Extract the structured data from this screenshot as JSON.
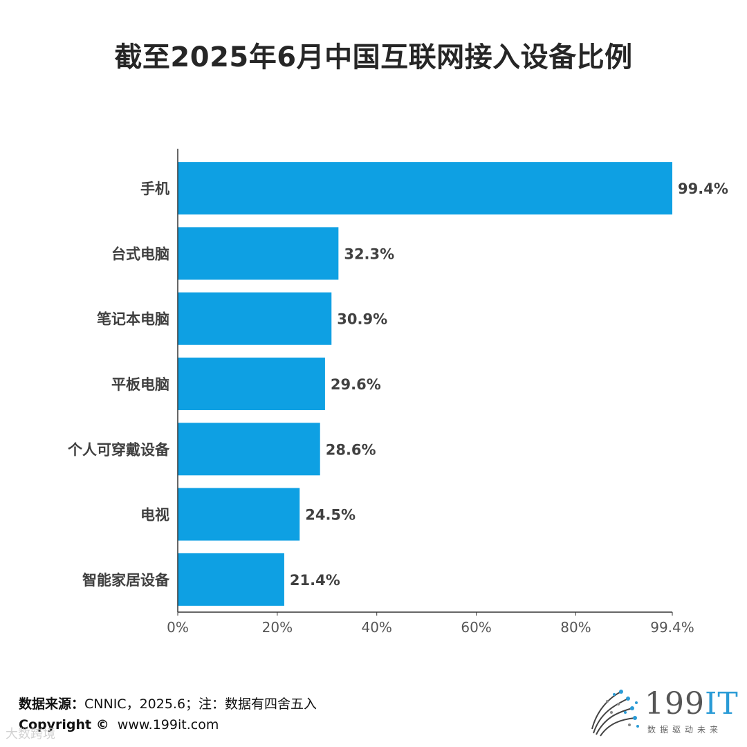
{
  "title": "截至2025年6月中国互联网接入设备比例",
  "colors": {
    "bar": "#0ea0e3",
    "axis": "#333333",
    "label": "#404040",
    "tick": "#555555"
  },
  "chart_data": {
    "type": "bar",
    "orientation": "horizontal",
    "title": "截至2025年6月中国互联网接入设备比例",
    "categories": [
      "手机",
      "台式电脑",
      "笔记本电脑",
      "平板电脑",
      "个人可穿戴设备",
      "电视",
      "智能家居设备"
    ],
    "values": [
      99.4,
      32.3,
      30.9,
      29.6,
      28.6,
      24.5,
      21.4
    ],
    "value_labels": [
      "99.4%",
      "32.3%",
      "30.9%",
      "29.6%",
      "28.6%",
      "24.5%",
      "21.4%"
    ],
    "xlim": [
      0,
      99.4
    ],
    "xticks": [
      0,
      20,
      40,
      60,
      80,
      99.4
    ],
    "xtick_labels": [
      "0%",
      "20%",
      "40%",
      "60%",
      "80%",
      "99.4%"
    ],
    "xlabel": "",
    "ylabel": "",
    "grid": false,
    "legend": "none"
  },
  "footer": {
    "source_label": "数据来源：",
    "source_text": "CNNIC，2025.6；注：数据有四舍五入",
    "copyright_label": "Copyright ©",
    "copyright_url": "www.199it.com",
    "watermark": "大数跨境"
  },
  "logo": {
    "text_main": "199",
    "text_it": "IT",
    "tagline": "数据驱动未来",
    "icon": "dot-swirl-logo-icon"
  }
}
